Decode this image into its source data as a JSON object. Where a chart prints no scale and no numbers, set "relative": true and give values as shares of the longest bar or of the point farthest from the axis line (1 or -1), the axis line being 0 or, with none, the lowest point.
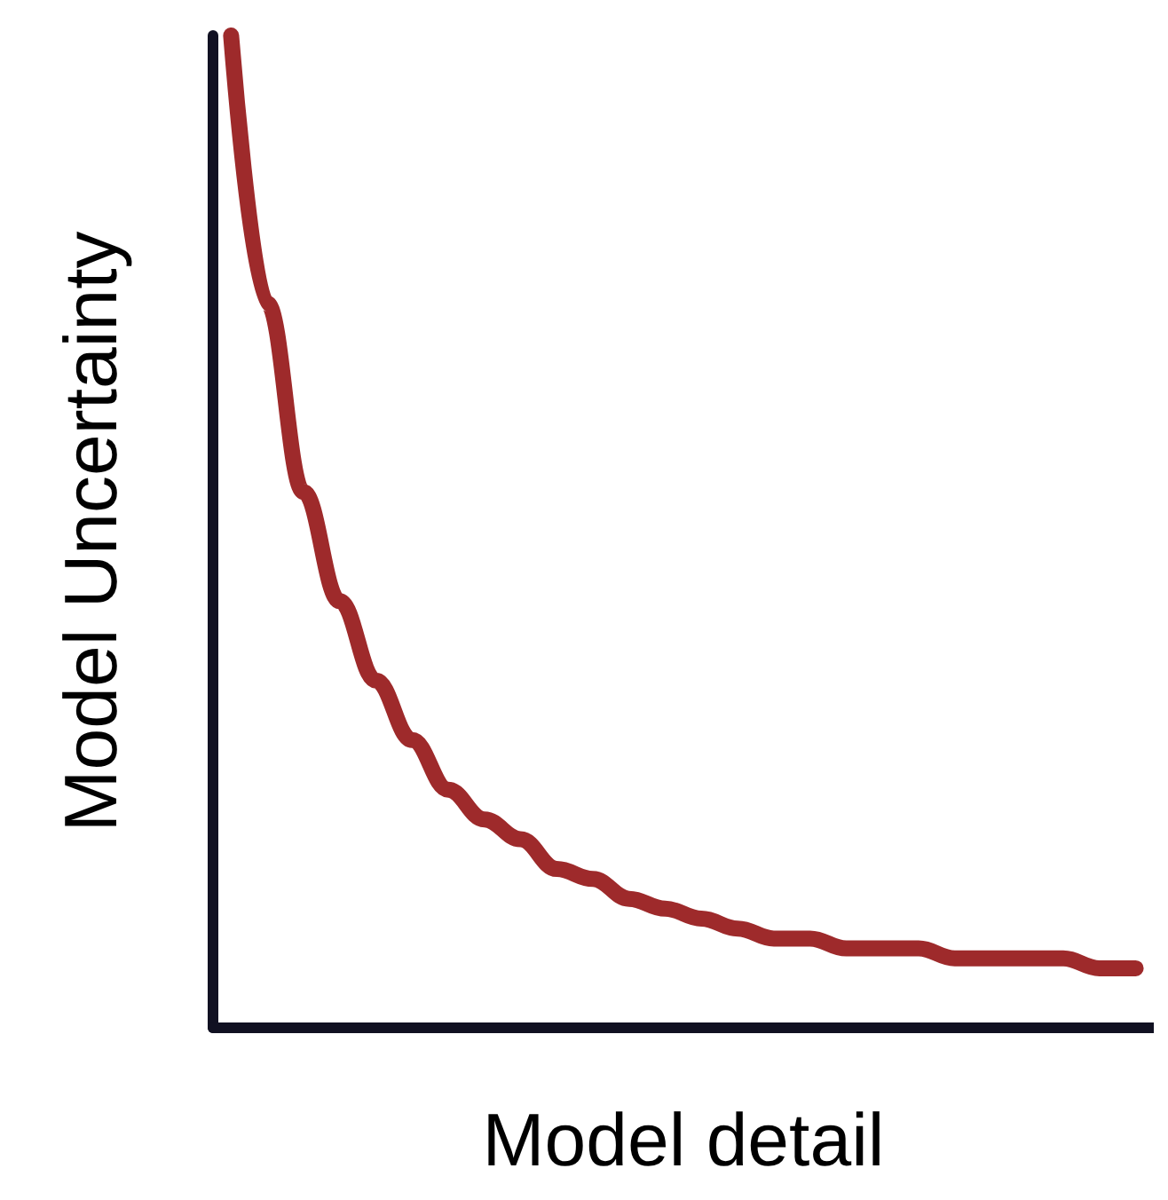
{
  "chart_data": {
    "type": "line",
    "relative": true,
    "xlabel": "Model detail",
    "ylabel": "Model Uncertainty",
    "categories": [
      null,
      null,
      null,
      null,
      null,
      null,
      null,
      null,
      null,
      null,
      null,
      null,
      null,
      null,
      null,
      null,
      null,
      null,
      null,
      null,
      null,
      null,
      null,
      null,
      null,
      null
    ],
    "series": [
      {
        "color": "#9e2a2b",
        "values": [
          1.0,
          0.73,
          0.54,
          0.43,
          0.35,
          0.29,
          0.24,
          0.21,
          0.19,
          0.16,
          0.15,
          0.13,
          0.12,
          0.11,
          0.1,
          0.09,
          0.09,
          0.08,
          0.08,
          0.08,
          0.07,
          0.07,
          0.07,
          0.07,
          0.06,
          0.06
        ]
      }
    ],
    "grid": false,
    "line_style": "solid"
  }
}
